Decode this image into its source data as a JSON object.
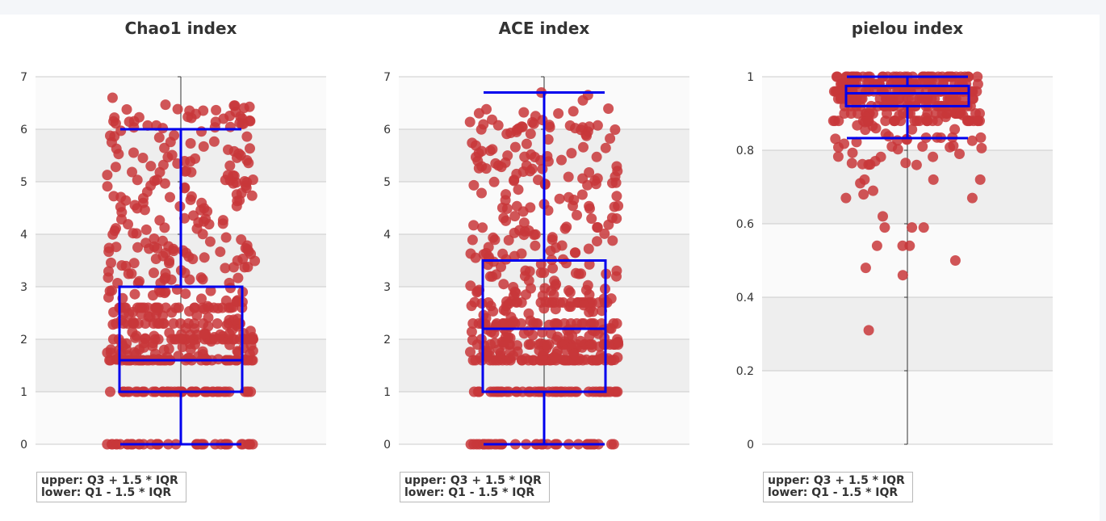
{
  "colors": {
    "point": "#c8373a",
    "box": "#0000ee",
    "band": "#eeeeee",
    "plot_bg": "#fafafa",
    "grid": "#cccccc",
    "axis": "#333333"
  },
  "chart_data": [
    {
      "type": "boxplot",
      "title": "Chao1 index",
      "ylim": [
        0,
        7
      ],
      "yticks": [
        "0",
        "1",
        "2",
        "3",
        "4",
        "5",
        "6",
        "7"
      ],
      "tick_values": [
        0,
        1,
        2,
        3,
        4,
        5,
        6,
        7
      ],
      "box": {
        "lower": 0,
        "q1": 1,
        "median": 1.6,
        "q3": 3,
        "upper": 6
      },
      "levels": [
        {
          "value": 0,
          "count": 40
        },
        {
          "value": 1,
          "count": 50
        },
        {
          "value": 1.6,
          "count": 45
        },
        {
          "value": 2,
          "count": 30
        },
        {
          "value": 2.3,
          "count": 20
        },
        {
          "value": 2.6,
          "count": 22
        }
      ],
      "spread": {
        "min": 1.6,
        "max": 6.5,
        "count": 330
      },
      "extras": [
        6.6,
        6.45,
        6.45,
        6.2,
        6.15,
        6.1
      ],
      "legend": {
        "upper": "upper: Q3 + 1.5 * IQR",
        "lower": "lower: Q1 - 1.5 * IQR"
      }
    },
    {
      "type": "boxplot",
      "title": "ACE index",
      "ylim": [
        0,
        7
      ],
      "yticks": [
        "0",
        "1",
        "2",
        "3",
        "4",
        "5",
        "6",
        "7"
      ],
      "tick_values": [
        0,
        1,
        2,
        3,
        4,
        5,
        6,
        7
      ],
      "box": {
        "lower": 0,
        "q1": 1,
        "median": 2.2,
        "q3": 3.5,
        "upper": 6.7
      },
      "levels": [
        {
          "value": 0,
          "count": 40
        },
        {
          "value": 1,
          "count": 50
        },
        {
          "value": 1.6,
          "count": 40
        },
        {
          "value": 1.9,
          "count": 30
        },
        {
          "value": 2.3,
          "count": 25
        },
        {
          "value": 2.7,
          "count": 20
        }
      ],
      "spread": {
        "min": 1.6,
        "max": 6.4,
        "count": 340
      },
      "extras": [
        6.7,
        6.65,
        6.55,
        6.3,
        6.25,
        6.05
      ],
      "legend": {
        "upper": "upper: Q3 + 1.5 * IQR",
        "lower": "lower: Q1 - 1.5 * IQR"
      }
    },
    {
      "type": "boxplot",
      "title": "pielou index",
      "ylim": [
        0,
        1
      ],
      "yticks": [
        "0",
        "0.2",
        "0.4",
        "0.6",
        "0.8",
        "1"
      ],
      "tick_values": [
        0,
        0.2,
        0.4,
        0.6,
        0.8,
        1
      ],
      "box": {
        "lower": 0.833,
        "q1": 0.92,
        "median": 0.955,
        "q3": 0.975,
        "upper": 1.0
      },
      "levels": [
        {
          "value": 1.0,
          "count": 45
        },
        {
          "value": 0.98,
          "count": 45
        },
        {
          "value": 0.96,
          "count": 50
        },
        {
          "value": 0.94,
          "count": 45
        },
        {
          "value": 0.92,
          "count": 35
        },
        {
          "value": 0.9,
          "count": 25
        },
        {
          "value": 0.88,
          "count": 25
        }
      ],
      "spread": {
        "min": 0.76,
        "max": 0.9,
        "count": 45
      },
      "extras": [
        0.81,
        0.81,
        0.72,
        0.72,
        0.72,
        0.71,
        0.69,
        0.68,
        0.67,
        0.67,
        0.62,
        0.59,
        0.59,
        0.59,
        0.54,
        0.54,
        0.54,
        0.5,
        0.48,
        0.46,
        0.31
      ],
      "legend": {
        "upper": "upper: Q3 + 1.5 * IQR",
        "lower": "lower: Q1 - 1.5 * IQR"
      }
    }
  ]
}
